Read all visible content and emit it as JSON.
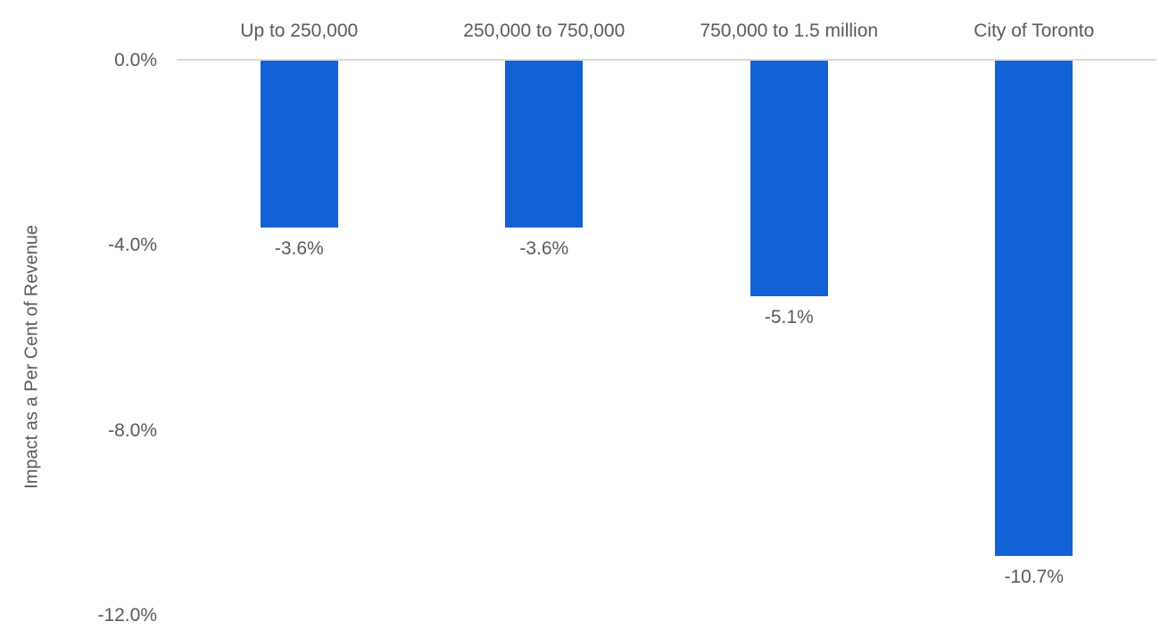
{
  "chart_data": {
    "type": "bar",
    "categories": [
      "Up to 250,000",
      "250,000 to 750,000",
      "750,000 to 1.5 million",
      "City of Toronto"
    ],
    "values": [
      -3.6,
      -3.6,
      -5.1,
      -10.7
    ],
    "data_labels": [
      "-3.6%",
      "-3.6%",
      "-5.1%",
      "-10.7%"
    ],
    "title": "",
    "xlabel": "",
    "ylabel": "Impact as a Per Cent of Revenue",
    "ylim": [
      -12,
      0
    ],
    "yticks": [
      0,
      -4,
      -8,
      -12
    ],
    "ytick_labels": [
      "0.0%",
      "-4.0%",
      "-8.0%",
      "-12.0%"
    ],
    "bar_color": "#1261d6",
    "axis_line_color": "#d9d9d9",
    "text_color": "#595959",
    "background_color": "#ffffff",
    "grid": false,
    "legend": "none",
    "category_labels_position": "top",
    "orientation": "vertical"
  }
}
